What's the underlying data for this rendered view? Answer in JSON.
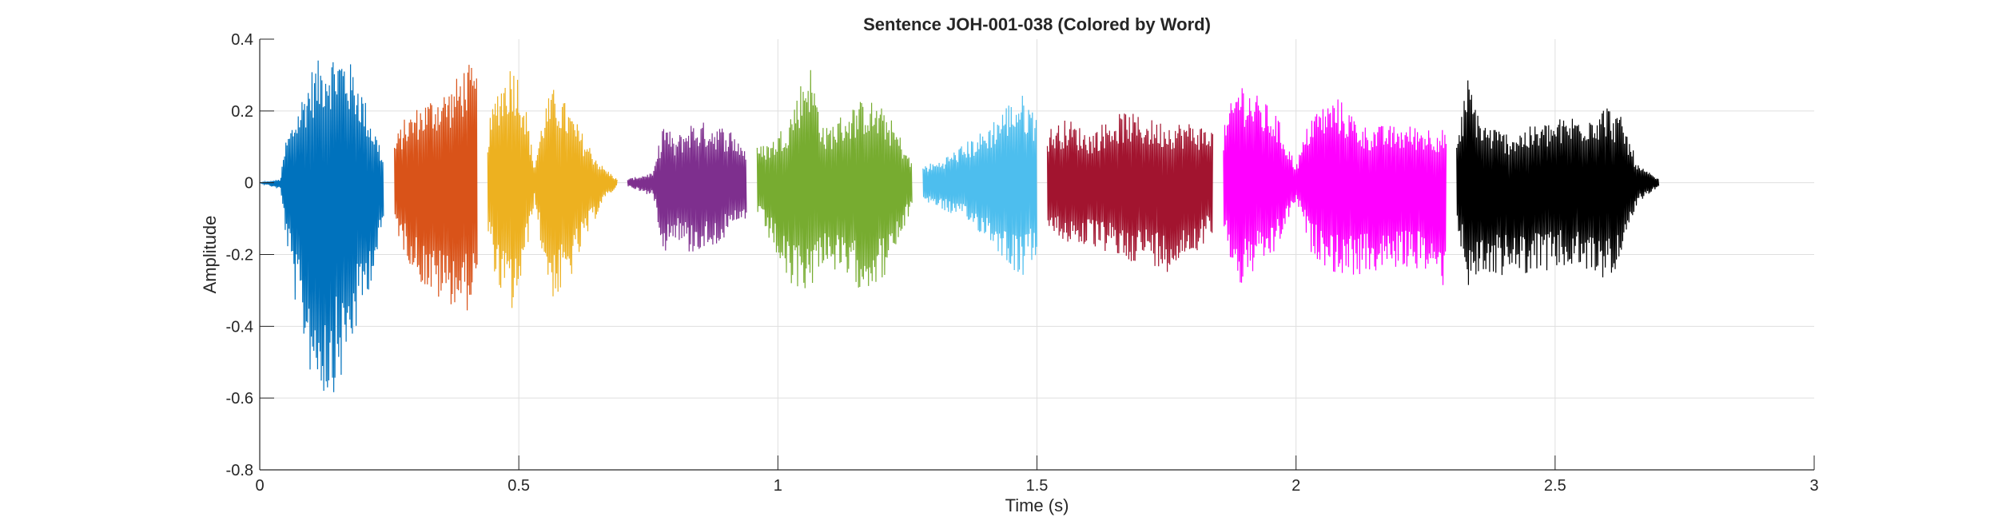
{
  "chart_data": {
    "type": "line",
    "title": "Sentence JOH-001-038 (Colored by Word)",
    "xlabel": "Time (s)",
    "ylabel": "Amplitude",
    "xlim": [
      0,
      3
    ],
    "ylim": [
      -0.8,
      0.4
    ],
    "xticks": [
      0,
      0.5,
      1,
      1.5,
      2,
      2.5,
      3
    ],
    "xtick_labels": [
      "0",
      "0.5",
      "1",
      "1.5",
      "2",
      "2.5",
      "3"
    ],
    "yticks": [
      -0.8,
      -0.6,
      -0.4,
      -0.2,
      0,
      0.2,
      0.4
    ],
    "ytick_labels": [
      "-0.8",
      "-0.6",
      "-0.4",
      "-0.2",
      "0",
      "0.2",
      "0.4"
    ],
    "grid": true,
    "series": [
      {
        "color": "#0072BD",
        "t_start": 0.0,
        "t_end": 0.24,
        "envelope": [
          [
            0.0,
            0.0
          ],
          [
            0.04,
            0.01
          ],
          [
            0.05,
            0.12
          ],
          [
            0.07,
            0.2
          ],
          [
            0.1,
            0.32
          ],
          [
            0.13,
            0.37
          ],
          [
            0.16,
            0.37
          ],
          [
            0.19,
            0.3
          ],
          [
            0.21,
            0.2
          ],
          [
            0.23,
            0.12
          ],
          [
            0.24,
            0.05
          ]
        ],
        "envelope_neg": [
          [
            0.0,
            0.0
          ],
          [
            0.04,
            -0.02
          ],
          [
            0.05,
            -0.15
          ],
          [
            0.07,
            -0.35
          ],
          [
            0.1,
            -0.55
          ],
          [
            0.13,
            -0.61
          ],
          [
            0.16,
            -0.55
          ],
          [
            0.19,
            -0.4
          ],
          [
            0.21,
            -0.3
          ],
          [
            0.23,
            -0.2
          ],
          [
            0.24,
            -0.1
          ]
        ]
      },
      {
        "color": "#D95319",
        "t_start": 0.26,
        "t_end": 0.42,
        "envelope": [
          [
            0.26,
            0.12
          ],
          [
            0.28,
            0.18
          ],
          [
            0.31,
            0.22
          ],
          [
            0.34,
            0.25
          ],
          [
            0.37,
            0.27
          ],
          [
            0.4,
            0.34
          ],
          [
            0.42,
            0.3
          ]
        ],
        "envelope_neg": [
          [
            0.26,
            -0.12
          ],
          [
            0.28,
            -0.2
          ],
          [
            0.31,
            -0.28
          ],
          [
            0.34,
            -0.33
          ],
          [
            0.37,
            -0.34
          ],
          [
            0.4,
            -0.36
          ],
          [
            0.42,
            -0.3
          ]
        ]
      },
      {
        "color": "#EDB120",
        "t_start": 0.44,
        "t_end": 0.69,
        "envelope": [
          [
            0.44,
            0.15
          ],
          [
            0.46,
            0.28
          ],
          [
            0.49,
            0.35
          ],
          [
            0.51,
            0.25
          ],
          [
            0.53,
            0.05
          ],
          [
            0.55,
            0.22
          ],
          [
            0.57,
            0.27
          ],
          [
            0.6,
            0.2
          ],
          [
            0.63,
            0.12
          ],
          [
            0.66,
            0.05
          ],
          [
            0.69,
            0.01
          ]
        ],
        "envelope_neg": [
          [
            0.44,
            -0.15
          ],
          [
            0.46,
            -0.3
          ],
          [
            0.49,
            -0.37
          ],
          [
            0.51,
            -0.25
          ],
          [
            0.53,
            -0.05
          ],
          [
            0.55,
            -0.25
          ],
          [
            0.57,
            -0.34
          ],
          [
            0.6,
            -0.27
          ],
          [
            0.63,
            -0.16
          ],
          [
            0.66,
            -0.06
          ],
          [
            0.69,
            -0.01
          ]
        ]
      },
      {
        "color": "#7E2F8E",
        "t_start": 0.71,
        "t_end": 0.94,
        "envelope": [
          [
            0.71,
            0.01
          ],
          [
            0.76,
            0.03
          ],
          [
            0.78,
            0.18
          ],
          [
            0.8,
            0.12
          ],
          [
            0.83,
            0.17
          ],
          [
            0.87,
            0.17
          ],
          [
            0.91,
            0.15
          ],
          [
            0.94,
            0.1
          ]
        ],
        "envelope_neg": [
          [
            0.71,
            -0.01
          ],
          [
            0.76,
            -0.04
          ],
          [
            0.78,
            -0.2
          ],
          [
            0.8,
            -0.15
          ],
          [
            0.83,
            -0.2
          ],
          [
            0.87,
            -0.18
          ],
          [
            0.91,
            -0.15
          ],
          [
            0.94,
            -0.1
          ]
        ]
      },
      {
        "color": "#77AC30",
        "t_start": 0.96,
        "t_end": 1.26,
        "envelope": [
          [
            0.96,
            0.1
          ],
          [
            0.99,
            0.12
          ],
          [
            1.02,
            0.18
          ],
          [
            1.06,
            0.35
          ],
          [
            1.09,
            0.15
          ],
          [
            1.13,
            0.2
          ],
          [
            1.17,
            0.24
          ],
          [
            1.21,
            0.2
          ],
          [
            1.24,
            0.12
          ],
          [
            1.26,
            0.05
          ]
        ],
        "envelope_neg": [
          [
            0.96,
            -0.1
          ],
          [
            0.99,
            -0.18
          ],
          [
            1.02,
            -0.3
          ],
          [
            1.06,
            -0.3
          ],
          [
            1.09,
            -0.22
          ],
          [
            1.13,
            -0.28
          ],
          [
            1.17,
            -0.3
          ],
          [
            1.21,
            -0.26
          ],
          [
            1.24,
            -0.15
          ],
          [
            1.26,
            -0.06
          ]
        ]
      },
      {
        "color": "#4DBEEE",
        "t_start": 1.28,
        "t_end": 1.5,
        "envelope": [
          [
            1.28,
            0.05
          ],
          [
            1.31,
            0.06
          ],
          [
            1.35,
            0.1
          ],
          [
            1.4,
            0.15
          ],
          [
            1.44,
            0.22
          ],
          [
            1.47,
            0.25
          ],
          [
            1.5,
            0.2
          ]
        ],
        "envelope_neg": [
          [
            1.28,
            -0.05
          ],
          [
            1.31,
            -0.07
          ],
          [
            1.35,
            -0.1
          ],
          [
            1.4,
            -0.15
          ],
          [
            1.44,
            -0.22
          ],
          [
            1.47,
            -0.27
          ],
          [
            1.5,
            -0.2
          ]
        ]
      },
      {
        "color": "#A2142F",
        "t_start": 1.52,
        "t_end": 1.84,
        "envelope": [
          [
            1.52,
            0.15
          ],
          [
            1.56,
            0.18
          ],
          [
            1.6,
            0.14
          ],
          [
            1.64,
            0.18
          ],
          [
            1.67,
            0.2
          ],
          [
            1.71,
            0.18
          ],
          [
            1.75,
            0.17
          ],
          [
            1.8,
            0.17
          ],
          [
            1.84,
            0.15
          ]
        ],
        "envelope_neg": [
          [
            1.52,
            -0.15
          ],
          [
            1.56,
            -0.17
          ],
          [
            1.6,
            -0.18
          ],
          [
            1.64,
            -0.2
          ],
          [
            1.67,
            -0.22
          ],
          [
            1.71,
            -0.22
          ],
          [
            1.75,
            -0.25
          ],
          [
            1.8,
            -0.2
          ],
          [
            1.84,
            -0.15
          ]
        ]
      },
      {
        "color": "#FF00FF",
        "t_start": 1.86,
        "t_end": 2.29,
        "envelope": [
          [
            1.86,
            0.15
          ],
          [
            1.89,
            0.3
          ],
          [
            1.92,
            0.25
          ],
          [
            1.96,
            0.2
          ],
          [
            2.0,
            0.05
          ],
          [
            2.03,
            0.2
          ],
          [
            2.08,
            0.24
          ],
          [
            2.13,
            0.16
          ],
          [
            2.19,
            0.16
          ],
          [
            2.24,
            0.16
          ],
          [
            2.29,
            0.15
          ]
        ],
        "envelope_neg": [
          [
            1.86,
            -0.15
          ],
          [
            1.89,
            -0.3
          ],
          [
            1.92,
            -0.25
          ],
          [
            1.96,
            -0.2
          ],
          [
            2.0,
            -0.05
          ],
          [
            2.03,
            -0.2
          ],
          [
            2.08,
            -0.26
          ],
          [
            2.13,
            -0.26
          ],
          [
            2.19,
            -0.24
          ],
          [
            2.24,
            -0.24
          ],
          [
            2.29,
            -0.3
          ]
        ]
      },
      {
        "color": "#000000",
        "t_start": 2.31,
        "t_end": 2.7,
        "envelope": [
          [
            2.31,
            0.1
          ],
          [
            2.33,
            0.3
          ],
          [
            2.36,
            0.17
          ],
          [
            2.41,
            0.14
          ],
          [
            2.46,
            0.16
          ],
          [
            2.51,
            0.18
          ],
          [
            2.56,
            0.2
          ],
          [
            2.6,
            0.22
          ],
          [
            2.63,
            0.18
          ],
          [
            2.66,
            0.05
          ],
          [
            2.7,
            0.01
          ]
        ],
        "envelope_neg": [
          [
            2.31,
            -0.1
          ],
          [
            2.33,
            -0.3
          ],
          [
            2.36,
            -0.26
          ],
          [
            2.41,
            -0.26
          ],
          [
            2.46,
            -0.25
          ],
          [
            2.51,
            -0.24
          ],
          [
            2.56,
            -0.25
          ],
          [
            2.6,
            -0.27
          ],
          [
            2.63,
            -0.22
          ],
          [
            2.66,
            -0.06
          ],
          [
            2.7,
            -0.01
          ]
        ]
      }
    ]
  }
}
